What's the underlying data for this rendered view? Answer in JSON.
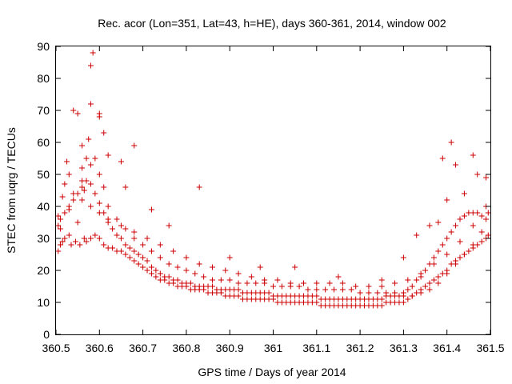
{
  "chart_data": {
    "type": "scatter",
    "title": "Rec. acor (Lon=351, Lat=43, h=HE), days 360-361, 2014, window 002",
    "xlabel": "GPS time / Days of year 2014",
    "ylabel": "STEC from uqrg / TECUs",
    "xlim": [
      360.5,
      361.5
    ],
    "ylim": [
      0,
      90
    ],
    "xticks": [
      "360.5",
      "360.6",
      "360.7",
      "360.8",
      "360.9",
      "361",
      "361.1",
      "361.2",
      "361.3",
      "361.4",
      "361.5"
    ],
    "yticks": [
      "0",
      "10",
      "20",
      "30",
      "40",
      "50",
      "60",
      "70",
      "80",
      "90"
    ],
    "grid": false,
    "marker": "+",
    "color": "#cc0000",
    "series": [
      {
        "x": [
          360.505,
          360.505,
          360.51,
          360.51,
          360.515,
          360.515,
          360.52,
          360.525,
          360.53,
          360.53,
          360.535,
          360.54,
          360.545,
          360.55,
          360.555,
          360.56,
          360.565,
          360.565,
          360.57,
          360.575,
          360.58,
          360.58,
          360.585,
          360.59,
          360.6,
          360.61,
          360.62,
          360.63,
          360.64,
          360.65,
          360.66,
          360.67,
          360.68,
          360.69,
          360.7,
          360.71,
          360.72,
          360.73,
          360.74,
          360.75,
          360.76,
          360.77,
          360.78,
          360.79,
          360.8,
          360.81,
          360.82,
          360.83,
          360.84,
          360.85,
          360.86,
          360.87,
          360.88,
          360.89,
          360.9,
          360.91,
          360.92,
          360.93,
          360.94,
          360.95,
          360.96,
          360.97,
          360.98,
          360.99,
          361.0,
          361.01,
          361.02,
          361.03,
          361.04,
          361.05,
          361.06,
          361.07,
          361.08,
          361.09,
          361.1,
          361.11,
          361.12,
          361.13,
          361.14,
          361.15,
          361.16,
          361.17,
          361.18,
          361.19,
          361.2,
          361.21,
          361.22,
          361.23,
          361.24,
          361.25,
          361.26,
          361.27,
          361.28,
          361.29,
          361.3,
          361.31,
          361.32,
          361.33,
          361.34,
          361.35,
          361.36,
          361.37,
          361.38,
          361.39,
          361.4,
          361.41,
          361.42,
          361.43,
          361.44,
          361.45,
          361.46,
          361.47,
          361.48,
          361.49,
          361.495
        ],
        "y": [
          26,
          37,
          28,
          33,
          29,
          43,
          30,
          54,
          31,
          39,
          28,
          70,
          29,
          35,
          28,
          52,
          30,
          45,
          29,
          61,
          30,
          72,
          88,
          31,
          30,
          28,
          27,
          27,
          26,
          26,
          25,
          24,
          23,
          22,
          21,
          20,
          19,
          18,
          17,
          17,
          16,
          16,
          15,
          15,
          15,
          14,
          14,
          14,
          14,
          13,
          13,
          13,
          13,
          12,
          12,
          12,
          12,
          11,
          11,
          11,
          11,
          11,
          11,
          11,
          11,
          10,
          10,
          10,
          10,
          10,
          10,
          10,
          10,
          10,
          10,
          9,
          9,
          9,
          9,
          9,
          9,
          9,
          9,
          9,
          9,
          9,
          9,
          9,
          9,
          9,
          10,
          10,
          10,
          10,
          10,
          11,
          12,
          13,
          14,
          15,
          16,
          17,
          18,
          19,
          20,
          22,
          23,
          24,
          25,
          26,
          27,
          28,
          29,
          30,
          31
        ]
      },
      {
        "x": [
          360.505,
          360.51,
          360.52,
          360.53,
          360.54,
          360.55,
          360.56,
          360.57,
          360.58,
          360.59,
          360.6,
          360.61,
          360.62,
          360.63,
          360.64,
          360.65,
          360.66,
          360.67,
          360.68,
          360.69,
          360.7,
          360.71,
          360.72,
          360.73,
          360.74,
          360.75,
          360.76,
          360.77,
          360.78,
          360.79,
          360.8,
          360.81,
          360.82,
          360.83,
          360.84,
          360.85,
          360.86,
          360.87,
          360.88,
          360.89,
          360.9,
          360.91,
          360.92,
          360.93,
          360.94,
          360.95,
          360.96,
          360.97,
          360.98,
          360.99,
          361.0,
          361.01,
          361.02,
          361.03,
          361.04,
          361.05,
          361.06,
          361.07,
          361.08,
          361.09,
          361.1,
          361.11,
          361.12,
          361.13,
          361.14,
          361.15,
          361.16,
          361.17,
          361.18,
          361.19,
          361.2,
          361.21,
          361.22,
          361.23,
          361.24,
          361.25,
          361.26,
          361.27,
          361.28,
          361.29,
          361.3,
          361.31,
          361.32,
          361.33,
          361.34,
          361.35,
          361.36,
          361.37,
          361.38,
          361.39,
          361.4,
          361.41,
          361.42,
          361.43,
          361.44,
          361.45,
          361.46,
          361.47,
          361.48,
          361.49
        ],
        "y": [
          34,
          36,
          38,
          40,
          42,
          44,
          46,
          48,
          47,
          44,
          41,
          38,
          35,
          33,
          31,
          30,
          28,
          27,
          26,
          25,
          24,
          23,
          21,
          20,
          19,
          18,
          18,
          17,
          17,
          16,
          16,
          16,
          15,
          15,
          15,
          15,
          15,
          14,
          14,
          14,
          14,
          14,
          14,
          13,
          13,
          13,
          13,
          13,
          13,
          13,
          12,
          12,
          12,
          12,
          12,
          12,
          12,
          12,
          12,
          12,
          12,
          11,
          11,
          11,
          11,
          11,
          11,
          11,
          11,
          11,
          11,
          11,
          11,
          11,
          11,
          11,
          12,
          12,
          12,
          12,
          13,
          14,
          15,
          17,
          18,
          20,
          22,
          24,
          26,
          28,
          30,
          32,
          34,
          36,
          37,
          38,
          38,
          38,
          37,
          36
        ]
      },
      {
        "x": [
          360.52,
          360.53,
          360.55,
          360.56,
          360.57,
          360.58,
          360.59,
          360.6,
          360.61,
          360.62,
          360.64,
          360.66,
          360.68,
          360.7,
          360.72,
          360.74,
          360.76,
          360.78,
          360.8,
          360.82,
          360.84,
          360.86,
          360.88,
          360.9,
          360.92,
          360.94,
          360.96,
          360.98,
          361.0,
          361.02,
          361.04,
          361.06,
          361.08,
          361.1,
          361.12,
          361.14,
          361.16,
          361.18,
          361.2,
          361.22,
          361.24,
          361.26,
          361.28,
          361.3,
          361.32,
          361.34,
          361.36,
          361.38,
          361.4,
          361.42,
          361.44,
          361.46,
          361.48
        ],
        "y": [
          47,
          50,
          69,
          59,
          55,
          53,
          55,
          50,
          46,
          40,
          36,
          33,
          30,
          28,
          26,
          24,
          22,
          21,
          20,
          19,
          18,
          17,
          17,
          17,
          16,
          16,
          16,
          16,
          15,
          15,
          15,
          15,
          14,
          14,
          14,
          14,
          14,
          14,
          13,
          13,
          13,
          13,
          13,
          12,
          12,
          13,
          14,
          16,
          19,
          22,
          25,
          28,
          32
        ]
      },
      {
        "x": [
          360.54,
          360.56,
          360.58,
          360.6,
          360.62,
          360.65,
          360.68,
          360.71,
          360.74,
          360.77,
          360.8,
          360.83,
          360.86,
          360.89,
          360.92,
          360.95,
          360.98,
          361.01,
          361.04,
          361.07,
          361.1,
          361.13,
          361.16,
          361.19,
          361.22,
          361.25,
          361.28,
          361.31,
          361.34,
          361.37,
          361.4,
          361.43,
          361.46,
          361.49
        ],
        "y": [
          44,
          42,
          40,
          38,
          36,
          34,
          32,
          30,
          28,
          26,
          24,
          22,
          21,
          20,
          19,
          18,
          17,
          17,
          16,
          16,
          16,
          16,
          16,
          15,
          15,
          15,
          16,
          17,
          19,
          22,
          25,
          29,
          34,
          40
        ]
      },
      {
        "x": [
          360.56,
          360.58,
          360.6,
          360.6,
          360.61,
          360.62,
          360.65,
          360.66,
          360.68,
          360.72,
          360.76,
          360.83,
          360.9,
          360.97,
          361.05,
          361.15,
          361.25,
          361.3,
          361.33,
          361.36,
          361.38,
          361.39,
          361.4,
          361.41,
          361.42,
          361.44,
          361.46,
          361.47,
          361.49,
          361.495
        ],
        "y": [
          48,
          84,
          69,
          68,
          63,
          56,
          54,
          46,
          59,
          39,
          34,
          46,
          24,
          21,
          21,
          18,
          17,
          24,
          31,
          34,
          35,
          55,
          42,
          60,
          53,
          44,
          56,
          50,
          49,
          38
        ]
      }
    ]
  }
}
